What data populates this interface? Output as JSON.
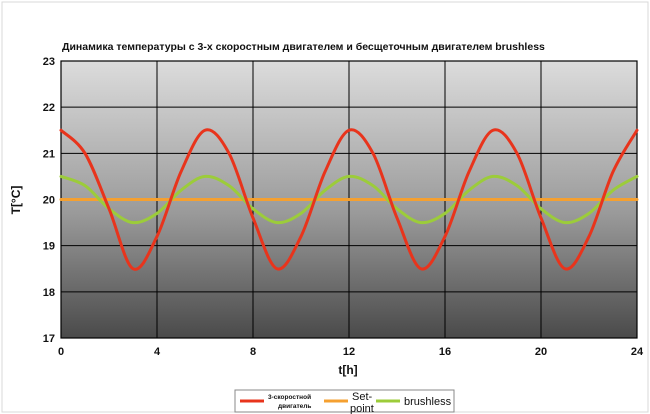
{
  "chart_data": {
    "type": "line",
    "title": "Динамика температуры с 3-х скоростным двигателем и бесщеточным двигателем brushless",
    "xlabel": "t[h]",
    "ylabel": "T[°C]",
    "xlim": [
      0,
      24
    ],
    "ylim": [
      17,
      23
    ],
    "x_ticks": [
      "0",
      "4",
      "8",
      "12",
      "16",
      "20",
      "24"
    ],
    "y_ticks": [
      "17",
      "18",
      "19",
      "20",
      "21",
      "22",
      "23"
    ],
    "grid": true,
    "legend_position": "bottom",
    "series": [
      {
        "name": "3-скоростной двигатель",
        "color": "#e8341c",
        "x": [
          0,
          1,
          2,
          3,
          4,
          5,
          6,
          7,
          8,
          9,
          10,
          11,
          12,
          13,
          14,
          15,
          16,
          17,
          18,
          19,
          20,
          21,
          22,
          23,
          24
        ],
        "y": [
          21.5,
          21.0,
          19.8,
          18.5,
          19.2,
          20.6,
          21.5,
          21.0,
          19.6,
          18.5,
          19.2,
          20.6,
          21.5,
          21.0,
          19.6,
          18.5,
          19.2,
          20.6,
          21.5,
          21.0,
          19.6,
          18.5,
          19.2,
          20.6,
          21.5
        ]
      },
      {
        "name": "Set-point",
        "color": "#f5a030",
        "x": [
          0,
          24
        ],
        "y": [
          20,
          20
        ]
      },
      {
        "name": "brushless",
        "color": "#9ccc3a",
        "x": [
          0,
          1,
          2,
          3,
          4,
          5,
          6,
          7,
          8,
          9,
          10,
          11,
          12,
          13,
          14,
          15,
          16,
          17,
          18,
          19,
          20,
          21,
          22,
          23,
          24
        ],
        "y": [
          20.5,
          20.3,
          19.8,
          19.5,
          19.7,
          20.2,
          20.5,
          20.3,
          19.8,
          19.5,
          19.7,
          20.2,
          20.5,
          20.3,
          19.8,
          19.5,
          19.7,
          20.2,
          20.5,
          20.3,
          19.8,
          19.5,
          19.7,
          20.2,
          20.5
        ]
      }
    ],
    "legend_labels": [
      "3-скоростной двигатель",
      "Set-point",
      "brushless"
    ]
  }
}
